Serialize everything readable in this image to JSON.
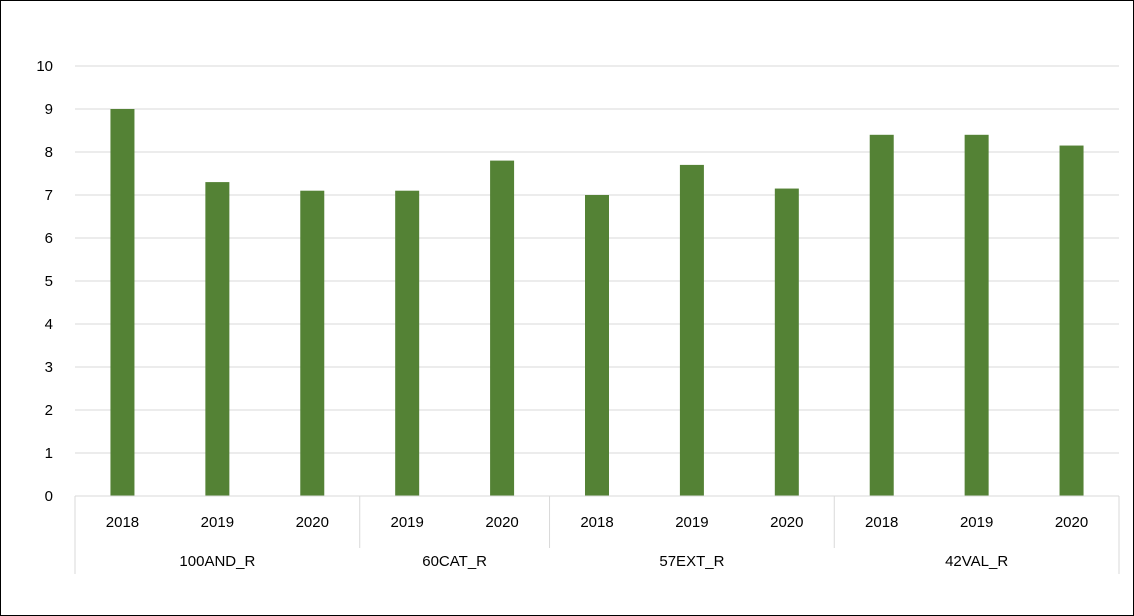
{
  "chart_data": {
    "type": "bar",
    "groups": [
      {
        "label": "100AND_R",
        "categories": [
          "2018",
          "2019",
          "2020"
        ],
        "values": [
          9.0,
          7.3,
          7.1
        ]
      },
      {
        "label": "60CAT_R",
        "categories": [
          "2019",
          "2020"
        ],
        "values": [
          7.1,
          7.8
        ]
      },
      {
        "label": "57EXT_R",
        "categories": [
          "2018",
          "2019",
          "2020"
        ],
        "values": [
          7.0,
          7.7,
          7.15
        ]
      },
      {
        "label": "42VAL_R",
        "categories": [
          "2018",
          "2019",
          "2020"
        ],
        "values": [
          8.4,
          8.4,
          8.15
        ]
      }
    ],
    "ylim": [
      0,
      10
    ],
    "yticks": [
      "0",
      "1",
      "2",
      "3",
      "4",
      "5",
      "6",
      "7",
      "8",
      "9",
      "10"
    ],
    "grid": true,
    "bar_color": "#548235",
    "grid_color": "#d9d9d9",
    "title": "",
    "xlabel": "",
    "ylabel": ""
  }
}
